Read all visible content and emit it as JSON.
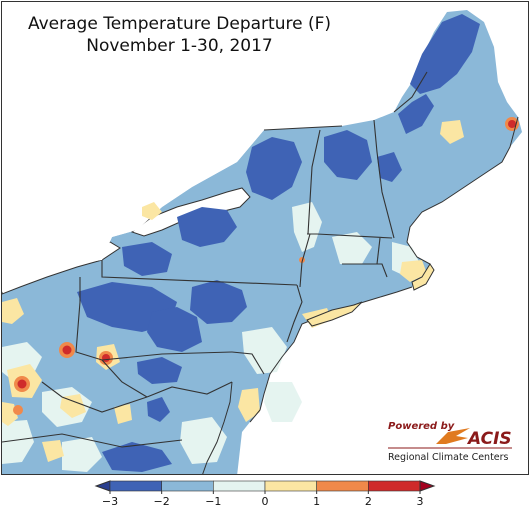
{
  "title": {
    "line1": "Average Temperature Departure (F)",
    "line2": "November 1-30, 2017"
  },
  "logo": {
    "powered_by": "Powered by",
    "brand": "ACIS",
    "org": "Regional Climate Centers",
    "colors": {
      "brand_red": "#8b1a1a",
      "swoosh": "#e07a1f"
    }
  },
  "legend": {
    "ticks": [
      "−3",
      "−2",
      "−1",
      "0",
      "1",
      "2",
      "3"
    ],
    "bins": [
      {
        "range": [
          -3,
          -2
        ],
        "color": "#3f63b5"
      },
      {
        "range": [
          -2,
          -1
        ],
        "color": "#8bb8d8"
      },
      {
        "range": [
          -1,
          0
        ],
        "color": "#e5f4f0"
      },
      {
        "range": [
          0,
          1
        ],
        "color": "#fbe6a3"
      },
      {
        "range": [
          1,
          2
        ],
        "color": "#f0894a"
      },
      {
        "range": [
          2,
          3
        ],
        "color": "#cf2b2b"
      }
    ],
    "under_color": "#2a3f8f",
    "over_color": "#a3001e"
  },
  "map": {
    "region": "Northeast United States",
    "colors": {
      "background": "#ffffff",
      "lakes": "#ffffff",
      "ocean": "#ffffff",
      "state_borders": "#333333",
      "county_borders": "#9fb8cc"
    }
  }
}
